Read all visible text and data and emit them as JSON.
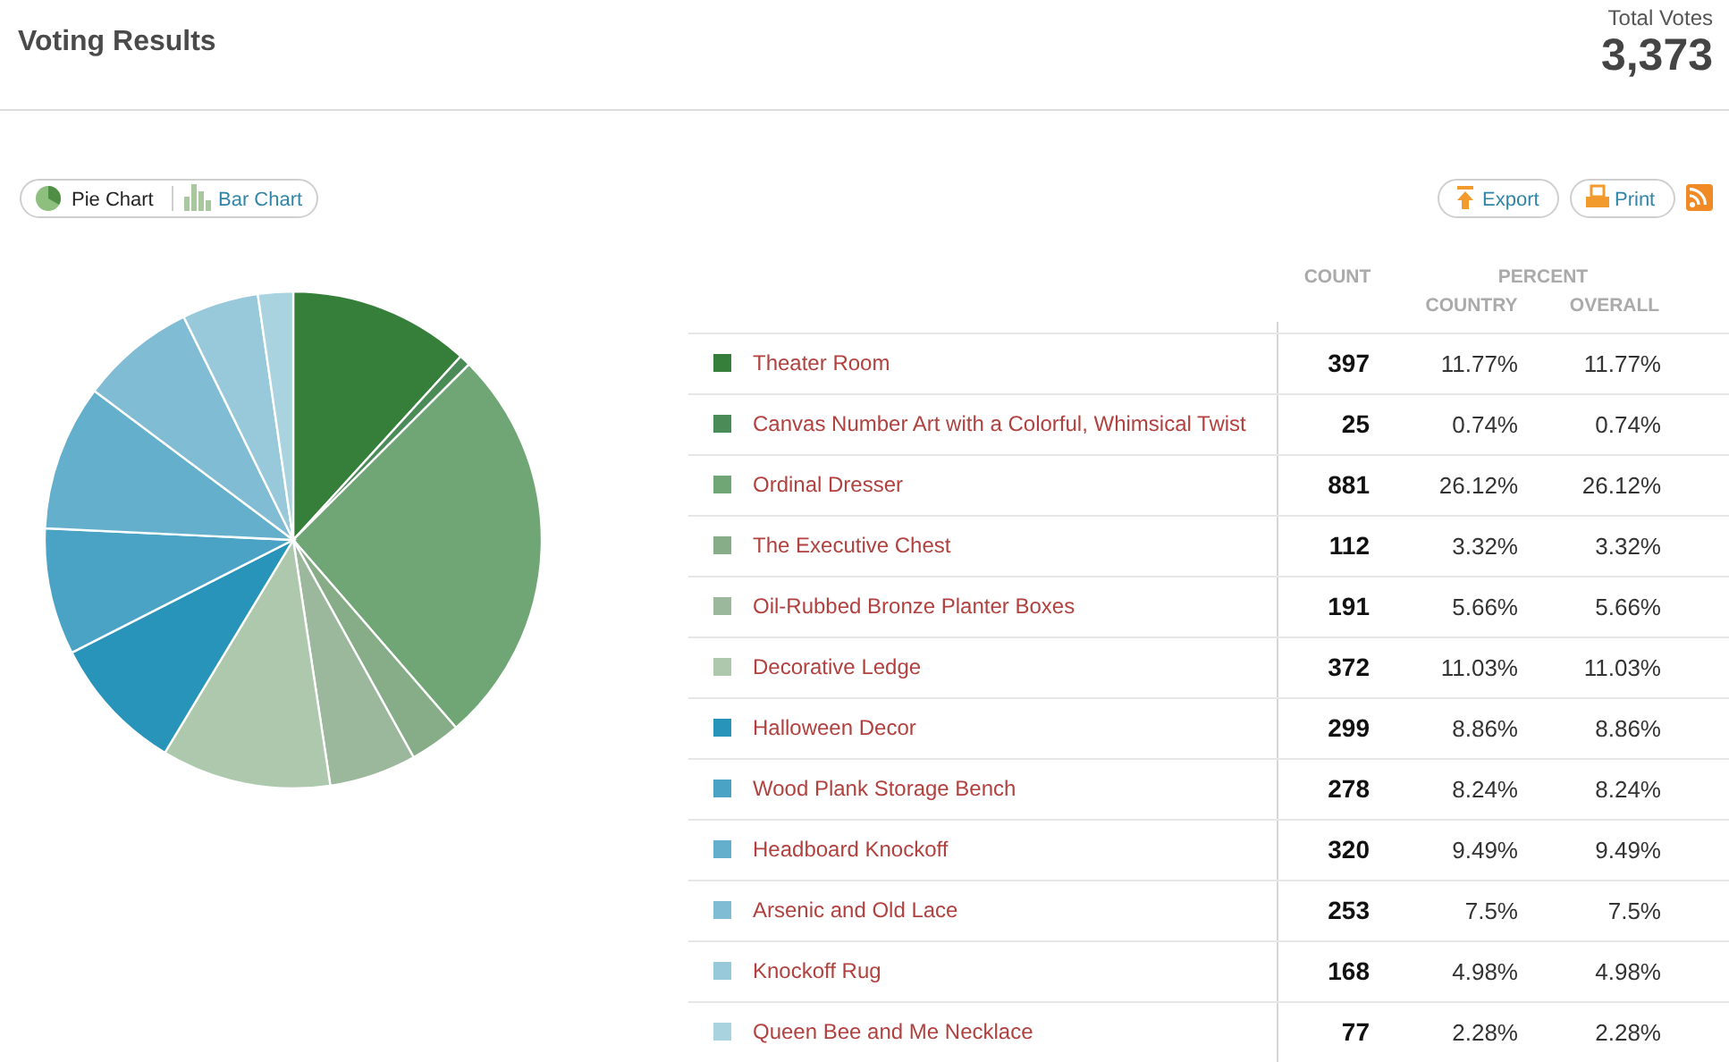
{
  "chart_data": [
    {
      "type": "pie",
      "title": "Voting Results",
      "categories": [
        "Theater Room",
        "Canvas Number Art with a Colorful, Whimsical Twist",
        "Ordinal Dresser",
        "The Executive Chest",
        "Oil-Rubbed Bronze Planter Boxes",
        "Decorative Ledge",
        "Halloween Decor",
        "Wood Plank Storage Bench",
        "Headboard Knockoff",
        "Arsenic and Old Lace",
        "Knockoff Rug",
        "Queen Bee and Me Necklace"
      ],
      "values": [
        397,
        25,
        881,
        112,
        191,
        372,
        299,
        278,
        320,
        253,
        168,
        77
      ],
      "colors": [
        "#367f3b",
        "#4b8b57",
        "#70a575",
        "#86ad88",
        "#9bb89d",
        "#adc8ad",
        "#2894b9",
        "#4aa3c4",
        "#64afcc",
        "#80bcd3",
        "#98c9db",
        "#a9d4df"
      ],
      "data_labels": true,
      "legend": "right",
      "annotations": [
        "Total Votes",
        "3,373",
        "Pie Chart",
        "Bar Chart",
        "Export",
        "Print",
        "COUNT"
      ]
    },
    {
      "type": "other",
      "title": "PERCENT",
      "annotations": [
        "COUNTRY",
        "OVERALL",
        "11.77%",
        "11.77%",
        "0.74%",
        "0.74%",
        "26.12%",
        "26.12%",
        "3.32%",
        "3.32%",
        "5.66%",
        "5.66%",
        "11.03%",
        "11.03%",
        "8.86%",
        "8.86%",
        "8.24%",
        "8.24%",
        "9.49%",
        "9.49%",
        "7.5%",
        "7.5%",
        "4.98%",
        "4.98%",
        "2.28%",
        "2.28%"
      ]
    }
  ]
}
